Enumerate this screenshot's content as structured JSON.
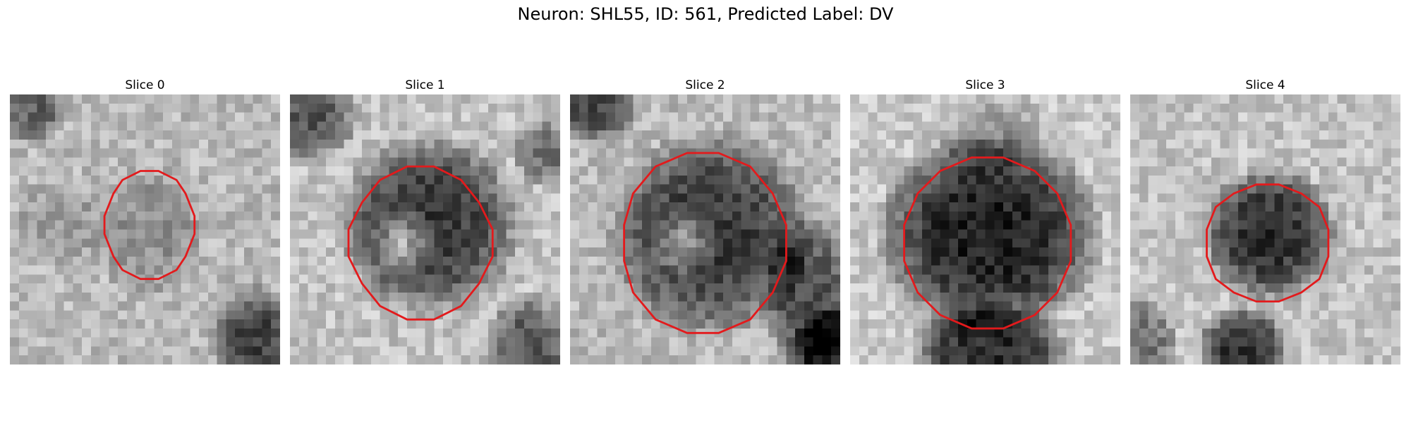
{
  "figure": {
    "title": "Neuron: SHL55, ID: 561, Predicted Label: DV"
  },
  "contour_color": "#e31a1c",
  "panels": [
    {
      "title": "Slice 0"
    },
    {
      "title": "Slice 1"
    },
    {
      "title": "Slice 2"
    },
    {
      "title": "Slice 3"
    },
    {
      "title": "Slice 4"
    }
  ]
}
